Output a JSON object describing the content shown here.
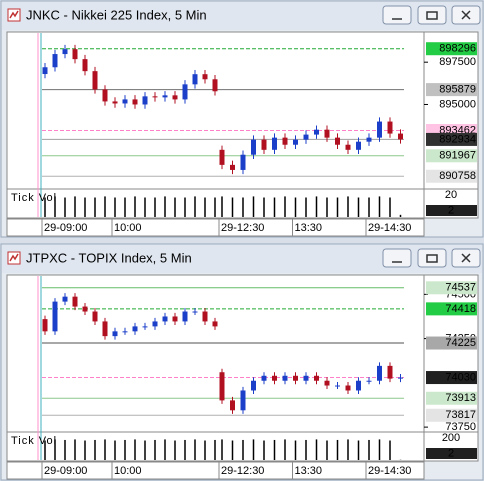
{
  "chart_data": [
    {
      "type": "candlestick",
      "title": "JNKC - Nikkei 225 Index, 5 Min",
      "up_color": "#1c3fc9",
      "down_color": "#b01020",
      "open": [
        896800,
        897200,
        897980,
        898270,
        897680,
        896970,
        895890,
        895180,
        895060,
        895300,
        895000,
        895480,
        895420,
        895540,
        895300,
        896190,
        896790,
        896490,
        892320,
        891430,
        891130,
        892030,
        892920,
        892320,
        893040,
        892620,
        892920,
        893220,
        893510,
        893040,
        892620,
        892320,
        892800,
        893040,
        893990,
        893280
      ],
      "high": [
        897450,
        898230,
        898520,
        898520,
        897930,
        897220,
        896140,
        895430,
        895550,
        895550,
        895730,
        895730,
        895790,
        895790,
        896440,
        897040,
        897040,
        896740,
        892570,
        891680,
        892280,
        893170,
        893170,
        893290,
        893290,
        893170,
        893470,
        893760,
        893760,
        893290,
        892870,
        893050,
        893290,
        894240,
        894240,
        893530
      ],
      "low": [
        896550,
        896950,
        897730,
        897430,
        896720,
        895640,
        894930,
        894810,
        894810,
        894750,
        894750,
        895170,
        895170,
        895050,
        895050,
        895940,
        896240,
        895530,
        891180,
        890880,
        890880,
        891780,
        892070,
        892070,
        892370,
        892370,
        892670,
        892970,
        892790,
        892370,
        892070,
        892070,
        892550,
        892790,
        893030,
        892684
      ],
      "close": [
        897200,
        897980,
        898270,
        897680,
        896970,
        895890,
        895180,
        895060,
        895300,
        895000,
        895480,
        895420,
        895540,
        895300,
        896190,
        896790,
        896490,
        895780,
        891430,
        891130,
        892030,
        892920,
        892320,
        893040,
        892620,
        892920,
        893220,
        893510,
        893040,
        892620,
        892320,
        892800,
        893040,
        893990,
        893280,
        892934
      ],
      "xticks": [
        {
          "value": 0,
          "label": "29-09:00"
        },
        {
          "value": 7,
          "label": "10:00"
        },
        {
          "value": 18,
          "label": "29-12:30"
        },
        {
          "value": 25,
          "label": "13:30"
        },
        {
          "value": 32,
          "label": "29-14:30"
        }
      ],
      "ylim": [
        890240,
        899166
      ],
      "yticks": [
        897500,
        895000
      ],
      "levels": [
        {
          "value": 898296,
          "color": "#22cc44",
          "text_color": "#000000",
          "line_color": "#22aa33",
          "dash": true
        },
        {
          "value": 895879,
          "color": "#c0c0c0",
          "text_color": "#000000",
          "line_color": "#707070",
          "dash": false
        },
        {
          "value": 893462,
          "color": "#ffc4e4",
          "text_color": "#000000",
          "line_color": "#ff80c8",
          "dash": true
        },
        {
          "value": 892934,
          "color": "#303030",
          "text_color": "#ffffff",
          "line_color": "#a0a0a0",
          "dash": false
        },
        {
          "value": 891967,
          "color": "#cce8cc",
          "text_color": "#000000",
          "line_color": "#8cc88c",
          "dash": false
        },
        {
          "value": 890758,
          "color": "#e4e4e4",
          "text_color": "#000000",
          "line_color": "#b0b0b0",
          "dash": false
        }
      ],
      "volume_label": "Tick Vol",
      "volume": [
        18,
        19,
        18,
        19,
        18,
        18,
        19,
        18,
        18,
        19,
        18,
        18,
        19,
        18,
        18,
        19,
        18,
        18,
        19,
        18,
        18,
        19,
        18,
        18,
        19,
        18,
        18,
        19,
        18,
        18,
        19,
        18,
        18,
        19,
        18,
        2
      ],
      "volume_ylim": [
        0,
        24
      ],
      "volume_ticks": [
        20
      ]
    },
    {
      "type": "candlestick",
      "title": "JTPXC - TOPIX Index, 5 Min",
      "up_color": "#1c3fc9",
      "down_color": "#b01020",
      "open": [
        74360,
        74291,
        74459,
        74487,
        74431,
        74403,
        74347,
        74264,
        74291,
        74291,
        74319,
        74319,
        74347,
        74375,
        74347,
        74403,
        74403,
        74347,
        74060,
        73901,
        73845,
        73957,
        74012,
        74040,
        74012,
        74040,
        74012,
        74040,
        74012,
        73985,
        73985,
        73957,
        74012,
        74012,
        74096,
        74024
      ],
      "high": [
        74380,
        74479,
        74507,
        74507,
        74451,
        74423,
        74367,
        74311,
        74311,
        74339,
        74339,
        74367,
        74395,
        74395,
        74423,
        74423,
        74423,
        74367,
        74080,
        73921,
        73977,
        74032,
        74060,
        74060,
        74060,
        74060,
        74060,
        74060,
        74032,
        74005,
        74005,
        74032,
        74032,
        74116,
        74116,
        74050
      ],
      "low": [
        74271,
        74271,
        74439,
        74411,
        74383,
        74327,
        74244,
        74244,
        74271,
        74271,
        74299,
        74299,
        74327,
        74327,
        74327,
        74383,
        74327,
        74299,
        73881,
        73825,
        73825,
        73937,
        73992,
        73992,
        73992,
        73992,
        73992,
        73992,
        73965,
        73965,
        73937,
        73937,
        73992,
        73992,
        74004,
        74004
      ],
      "close": [
        74291,
        74459,
        74487,
        74431,
        74403,
        74347,
        74264,
        74291,
        74291,
        74319,
        74319,
        74347,
        74375,
        74347,
        74403,
        74403,
        74347,
        74319,
        73901,
        73845,
        73957,
        74012,
        74040,
        74012,
        74040,
        74012,
        74040,
        74012,
        73985,
        73985,
        73957,
        74012,
        74012,
        74096,
        74024,
        74030
      ],
      "xticks": [
        {
          "value": 0,
          "label": "29-09:00"
        },
        {
          "value": 7,
          "label": "10:00"
        },
        {
          "value": 18,
          "label": "29-12:30"
        },
        {
          "value": 25,
          "label": "13:30"
        },
        {
          "value": 32,
          "label": "29-14:30"
        }
      ],
      "ylim": [
        73745,
        74598
      ],
      "yticks": [
        74500,
        74250,
        73750
      ],
      "levels": [
        {
          "value": 74537,
          "color": "#cce8cc",
          "text_color": "#000000",
          "line_color": "#66bb66",
          "dash": false
        },
        {
          "value": 74418,
          "color": "#22cc44",
          "text_color": "#000000",
          "line_color": "#22aa33",
          "dash": true
        },
        {
          "value": 74225,
          "color": "#a8a8a8",
          "text_color": "#000000",
          "line_color": "#505050",
          "dash": false
        },
        {
          "value": 74030,
          "color": "#202020",
          "text_color": "#ffffff",
          "line_color": "#ff80c8",
          "dash": true
        },
        {
          "value": 73913,
          "color": "#cce8cc",
          "text_color": "#000000",
          "line_color": "#8cc88c",
          "dash": false
        },
        {
          "value": 73817,
          "color": "#e4e4e4",
          "text_color": "#000000",
          "line_color": "#b0b0b0",
          "dash": false
        }
      ],
      "volume_label": "Tick Vol",
      "volume": [
        180,
        190,
        185,
        190,
        180,
        185,
        190,
        180,
        185,
        190,
        180,
        185,
        190,
        180,
        185,
        190,
        180,
        185,
        190,
        180,
        185,
        190,
        180,
        185,
        190,
        180,
        185,
        190,
        180,
        185,
        190,
        180,
        185,
        190,
        180,
        2
      ],
      "volume_ylim": [
        0,
        240
      ],
      "volume_ticks": [
        200
      ]
    }
  ]
}
